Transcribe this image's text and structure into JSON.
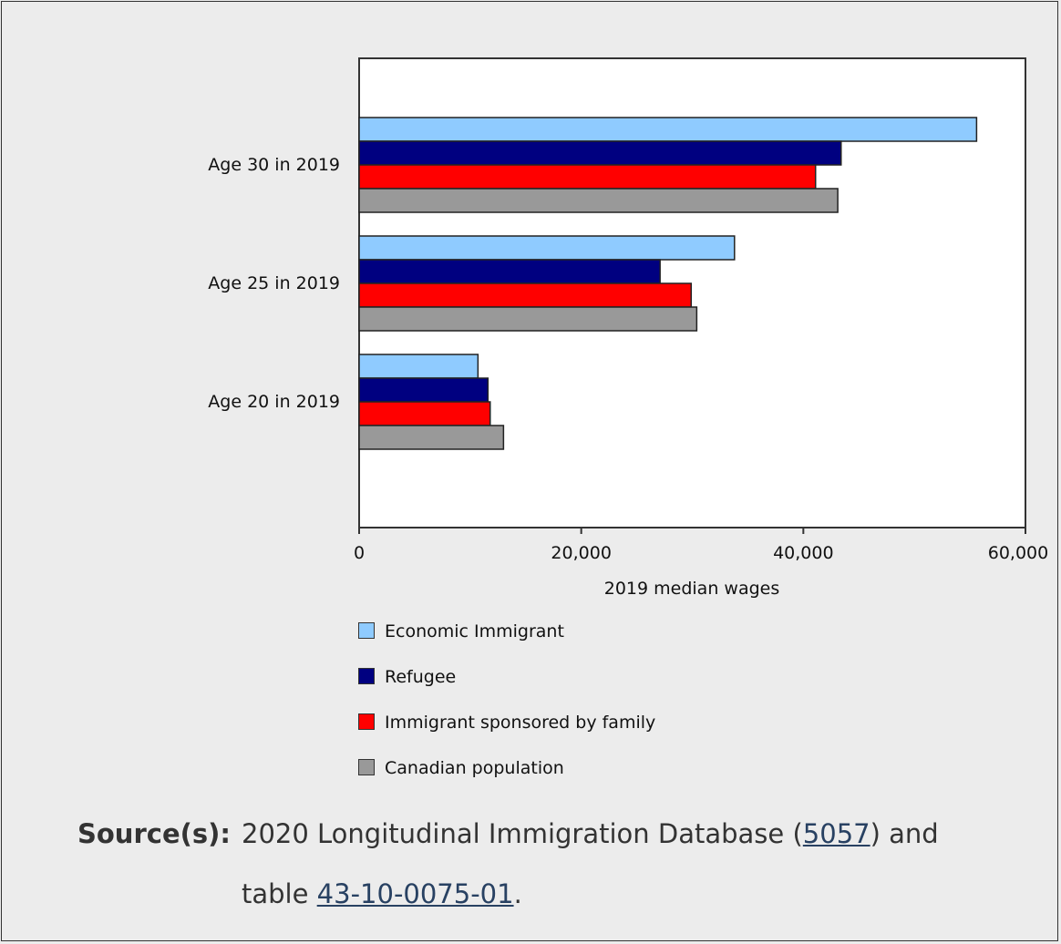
{
  "chart_data": {
    "type": "bar",
    "orientation": "horizontal",
    "categories": [
      "Age 30 in 2019",
      "Age 25 in 2019",
      "Age 20 in 2019"
    ],
    "series": [
      {
        "name": "Economic Immigrant",
        "color": "#8fcbff",
        "values": [
          55600,
          33800,
          10700
        ]
      },
      {
        "name": "Refugee",
        "color": "#000080",
        "values": [
          43400,
          27100,
          11600
        ]
      },
      {
        "name": "Immigrant sponsored by family",
        "color": "#ff0000",
        "values": [
          41100,
          29900,
          11800
        ]
      },
      {
        "name": "Canadian population",
        "color": "#999999",
        "values": [
          43100,
          30400,
          13000
        ]
      }
    ],
    "xlabel": "2019 median wages",
    "xlim": [
      0,
      60000
    ],
    "xticks": [
      0,
      20000,
      40000,
      60000
    ],
    "xtick_labels": [
      "0",
      "20,000",
      "40,000",
      "60,000"
    ],
    "grid": false,
    "legend_position": "bottom"
  },
  "source": {
    "heading": "Source(s):",
    "line1_text": "2020 Longitudinal Immigration Database (",
    "line1_link": "5057",
    "line1_after": ") and",
    "line2_text": "table ",
    "line2_link": "43-10-0075-01",
    "line2_after": "."
  }
}
